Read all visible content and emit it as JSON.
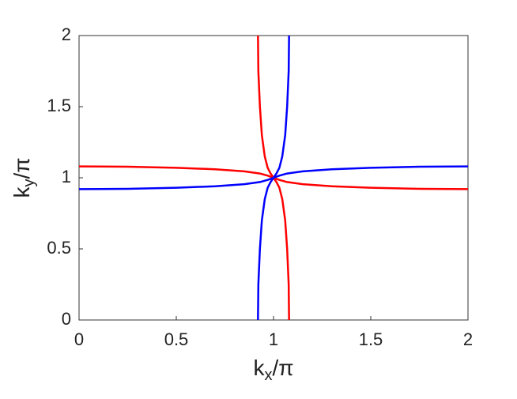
{
  "chart_data": {
    "type": "line",
    "xlabel": [
      "k",
      "x",
      "/π"
    ],
    "ylabel": [
      "k",
      "y",
      "/π"
    ],
    "xlim": [
      0,
      2
    ],
    "ylim": [
      0,
      2
    ],
    "xticks": [
      0,
      0.5,
      1,
      1.5,
      2
    ],
    "yticks": [
      0,
      0.5,
      1,
      1.5,
      2
    ],
    "series": [
      {
        "color": "#ff0000",
        "x": [
          0,
          0.25,
          0.5,
          0.7,
          0.85,
          0.93,
          0.97,
          1,
          1.03,
          1.07,
          1.15,
          1.3,
          1.5,
          1.75,
          2
        ],
        "values": [
          1.08,
          1.078,
          1.07,
          1.06,
          1.045,
          1.03,
          1.015,
          1.0,
          0.985,
          0.97,
          0.955,
          0.94,
          0.93,
          0.922,
          0.92
        ]
      },
      {
        "color": "#ff0000",
        "x": [
          1.08,
          1.078,
          1.07,
          1.06,
          1.045,
          1.03,
          1.015,
          1.0,
          0.985,
          0.97,
          0.955,
          0.94,
          0.93,
          0.922,
          0.92
        ],
        "values": [
          0,
          0.25,
          0.5,
          0.7,
          0.85,
          0.93,
          0.97,
          1,
          1.03,
          1.07,
          1.15,
          1.3,
          1.5,
          1.75,
          2
        ]
      },
      {
        "color": "#0000ff",
        "x": [
          0,
          0.25,
          0.5,
          0.7,
          0.85,
          0.93,
          0.97,
          1,
          1.03,
          1.07,
          1.15,
          1.3,
          1.5,
          1.75,
          2
        ],
        "values": [
          0.92,
          0.922,
          0.93,
          0.94,
          0.955,
          0.97,
          0.985,
          1.0,
          1.015,
          1.03,
          1.045,
          1.06,
          1.07,
          1.078,
          1.08
        ]
      },
      {
        "color": "#0000ff",
        "x": [
          0.92,
          0.922,
          0.93,
          0.94,
          0.955,
          0.97,
          0.985,
          1.0,
          1.015,
          1.03,
          1.045,
          1.06,
          1.07,
          1.078,
          1.08
        ],
        "values": [
          0,
          0.25,
          0.5,
          0.7,
          0.85,
          0.93,
          0.97,
          1,
          1.03,
          1.07,
          1.15,
          1.3,
          1.5,
          1.75,
          2
        ]
      }
    ]
  }
}
